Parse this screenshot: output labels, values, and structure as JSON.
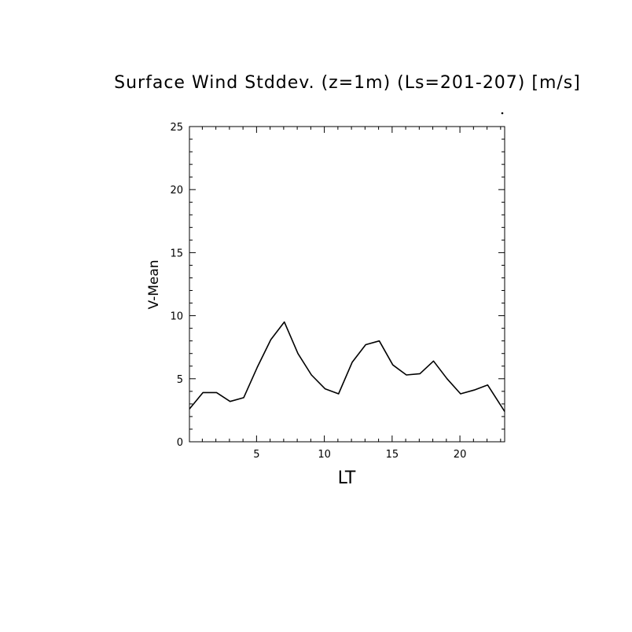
{
  "chart_data": {
    "type": "line",
    "title": "Surface Wind Stddev. (z=1m) (Ls=201-207) [m/s]",
    "xlabel": "LT",
    "ylabel": "V-Mean",
    "xlim": [
      0.05,
      23.3
    ],
    "ylim": [
      0,
      25
    ],
    "xticks": [
      5,
      10,
      15,
      20
    ],
    "yticks": [
      0,
      5,
      10,
      15,
      20,
      25
    ],
    "grid": false,
    "series": [
      {
        "x": [
          0.05,
          1.05,
          2.05,
          3.05,
          4.05,
          5.05,
          6.05,
          7.05,
          8.05,
          9.05,
          10.05,
          11.05,
          12.05,
          13.05,
          14.05,
          15.05,
          16.05,
          17.05,
          18.05,
          19.05,
          20.05,
          21.05,
          22.05,
          23.3
        ],
        "y": [
          2.6,
          3.9,
          3.9,
          3.2,
          3.5,
          5.9,
          8.1,
          9.5,
          7.0,
          5.3,
          4.2,
          3.8,
          6.3,
          7.7,
          8.0,
          6.1,
          5.3,
          5.4,
          6.4,
          5.0,
          3.8,
          4.1,
          4.5,
          2.4
        ]
      }
    ]
  }
}
